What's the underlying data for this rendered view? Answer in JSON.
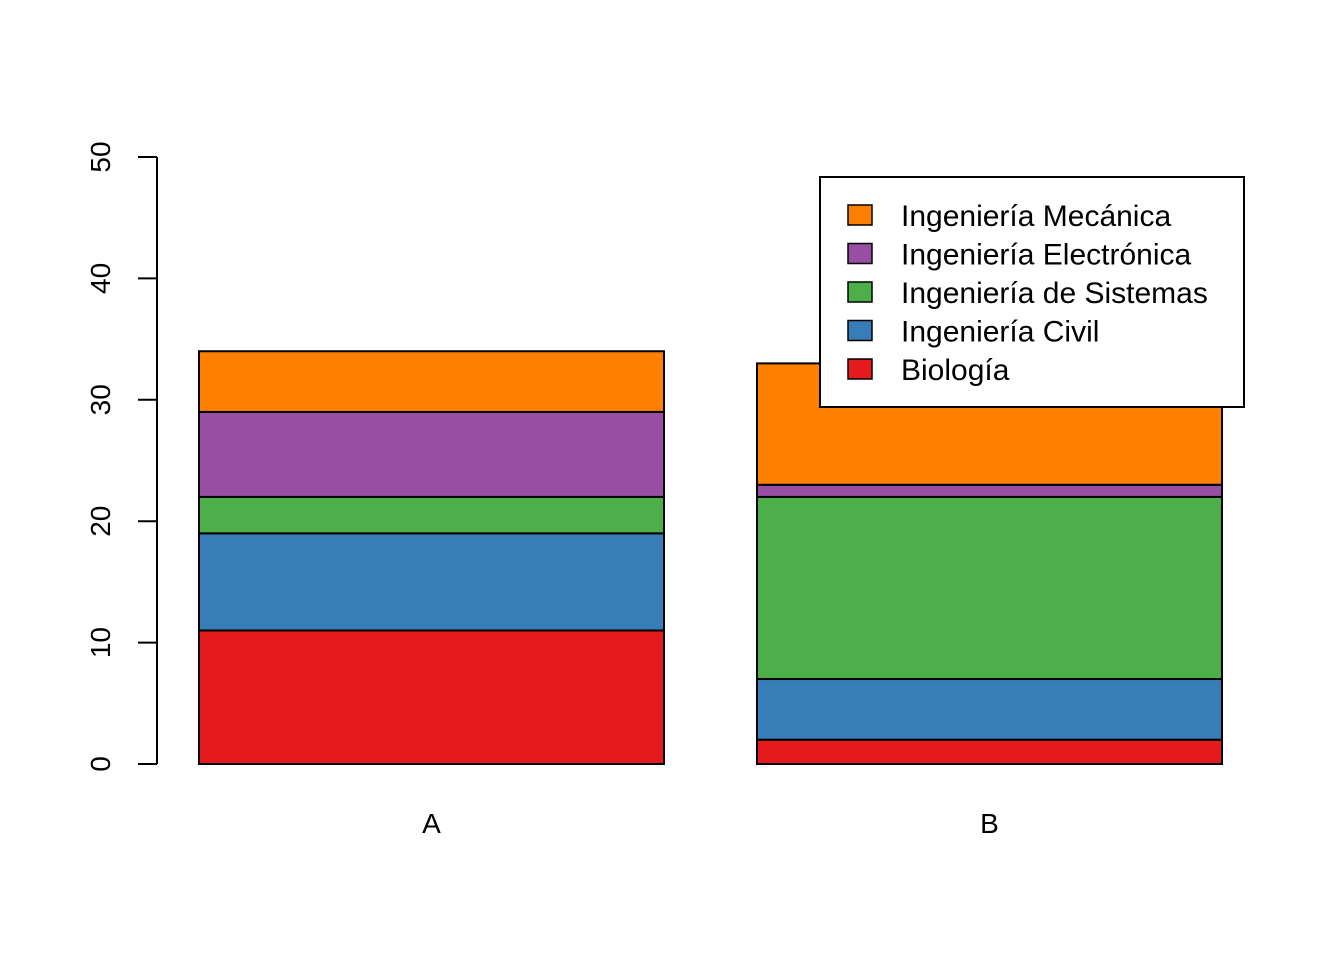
{
  "chart_data": {
    "type": "bar",
    "stacked": true,
    "categories": [
      "A",
      "B"
    ],
    "series": [
      {
        "name": "Biología",
        "color": "#E41A1C",
        "values": [
          11,
          2
        ]
      },
      {
        "name": "Ingeniería Civil",
        "color": "#377EB8",
        "values": [
          8,
          5
        ]
      },
      {
        "name": "Ingeniería de Sistemas",
        "color": "#4DAF4A",
        "values": [
          3,
          15
        ]
      },
      {
        "name": "Ingeniería Electrónica",
        "color": "#984EA3",
        "values": [
          7,
          1
        ]
      },
      {
        "name": "Ingeniería Mecánica",
        "color": "#FF7F00",
        "values": [
          5,
          10
        ]
      }
    ],
    "ylim": [
      0,
      50
    ],
    "yticks": [
      "0",
      "10",
      "20",
      "30",
      "40",
      "50"
    ],
    "legend_position": "top-right",
    "grid": false
  }
}
